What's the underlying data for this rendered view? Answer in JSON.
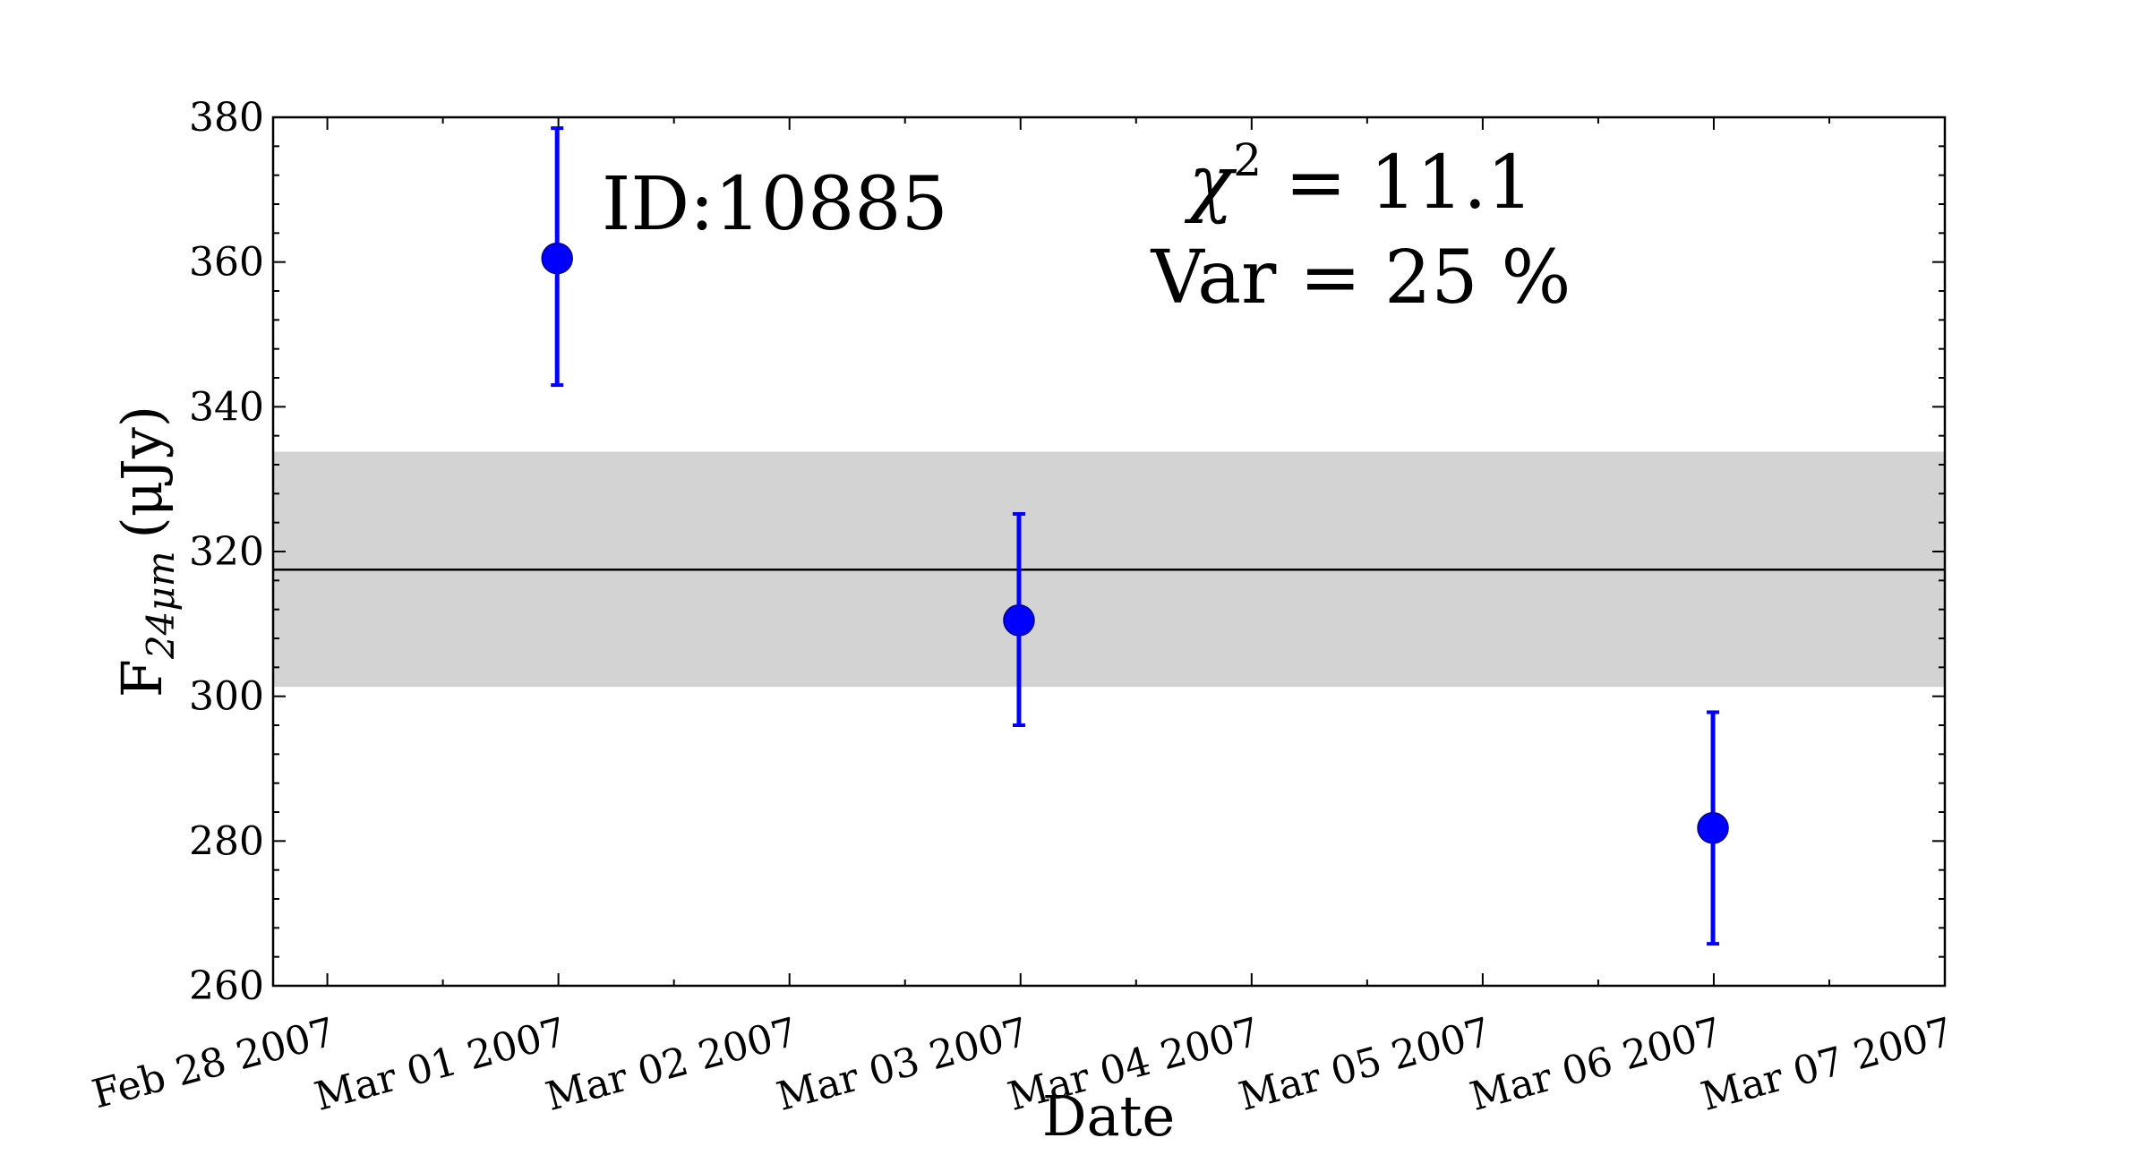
{
  "chart_data": {
    "type": "scatter",
    "title": "",
    "xlabel": "Date",
    "ylabel_main": "F",
    "ylabel_subscript": "24μm",
    "ylabel_unit": "(μJy)",
    "x_tick_labels": [
      "Feb 28 2007",
      "Mar 01 2007",
      "Mar 02 2007",
      "Mar 03 2007",
      "Mar 04 2007",
      "Mar 05 2007",
      "Mar 06 2007",
      "Mar 07 2007"
    ],
    "x_tick_dates": [
      "2007-02-28",
      "2007-03-01",
      "2007-03-02",
      "2007-03-03",
      "2007-03-04",
      "2007-03-05",
      "2007-03-06",
      "2007-03-07"
    ],
    "xlim": [
      "2007-02-27T18:22",
      "2007-03-07T00:00"
    ],
    "ylim": [
      260,
      380
    ],
    "y_ticks": [
      260,
      280,
      300,
      320,
      340,
      360,
      380
    ],
    "points": [
      {
        "x": "2007-02-28T23:52",
        "y": 360.5,
        "err_low": 17.5,
        "err_high": 18.0
      },
      {
        "x": "2007-03-02T23:50",
        "y": 310.5,
        "err_low": 14.5,
        "err_high": 14.7
      },
      {
        "x": "2007-03-05T23:55",
        "y": 281.8,
        "err_low": 16.0,
        "err_high": 16.0
      }
    ],
    "mean_line": 317.5,
    "band": [
      301.3,
      333.8
    ],
    "point_color": "#0000ff",
    "mean_line_color": "#000000",
    "band_color": "#d3d3d3",
    "annotations": {
      "id_text": "ID:10885",
      "chi_symbol": "χ",
      "chi_exponent": "2",
      "chi_value_text": " = 11.1",
      "var_text": "Var = 25 %"
    },
    "grid": false,
    "legend": "none"
  }
}
